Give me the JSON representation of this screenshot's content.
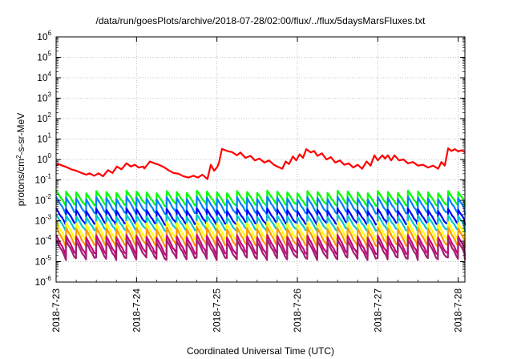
{
  "chart_data": {
    "type": "line",
    "title": "/data/run/goesPlots/archive/2018-07-28/02:00/flux/../flux/5daysMarsFluxes.txt",
    "xlabel": "Coordinated Universal Time (UTC)",
    "ylabel_parts": {
      "pre": "protons/cm",
      "sup": "2",
      "post": "-s-sr-MeV"
    },
    "x_axis": {
      "type": "date",
      "range": [
        "2018-07-23",
        "2018-07-28 02:00"
      ],
      "ticks": [
        "2018-7-23",
        "2018-7-24",
        "2018-7-25",
        "2018-7-26",
        "2018-7-27",
        "2018-7-28"
      ]
    },
    "y_axis": {
      "scale": "log",
      "range": [
        1e-06,
        1000000.0
      ],
      "tick_exponents": [
        -6,
        -5,
        -4,
        -3,
        -2,
        -1,
        0,
        1,
        2,
        3,
        4,
        5,
        6
      ]
    },
    "grid": true,
    "legend": "none",
    "series": [
      {
        "color": "#ff0000",
        "kind": "envelope",
        "points": [
          [
            "2018-07-23 00:00",
            0.5
          ],
          [
            "2018-07-23 00:40",
            0.6
          ],
          [
            "2018-07-23 01:50",
            0.5
          ],
          [
            "2018-07-23 03:10",
            0.42
          ],
          [
            "2018-07-23 04:40",
            0.32
          ],
          [
            "2018-07-23 06:00",
            0.28
          ],
          [
            "2018-07-23 07:30",
            0.22
          ],
          [
            "2018-07-23 09:00",
            0.18
          ],
          [
            "2018-07-23 10:00",
            0.21
          ],
          [
            "2018-07-23 11:20",
            0.16
          ],
          [
            "2018-07-23 12:40",
            0.21
          ],
          [
            "2018-07-23 14:00",
            0.15
          ],
          [
            "2018-07-23 15:30",
            0.3
          ],
          [
            "2018-07-23 16:50",
            0.22
          ],
          [
            "2018-07-23 18:10",
            0.45
          ],
          [
            "2018-07-23 19:30",
            0.33
          ],
          [
            "2018-07-23 21:00",
            0.65
          ],
          [
            "2018-07-23 22:20",
            0.45
          ],
          [
            "2018-07-23 23:30",
            0.55
          ],
          [
            "2018-07-24 00:40",
            0.4
          ],
          [
            "2018-07-24 02:00",
            0.45
          ],
          [
            "2018-07-24 02:20",
            0.36
          ],
          [
            "2018-07-24 04:00",
            0.8
          ],
          [
            "2018-07-24 05:20",
            0.65
          ],
          [
            "2018-07-24 06:40",
            0.55
          ],
          [
            "2018-07-24 08:10",
            0.42
          ],
          [
            "2018-07-24 09:30",
            0.3
          ],
          [
            "2018-07-24 11:00",
            0.22
          ],
          [
            "2018-07-24 12:30",
            0.2
          ],
          [
            "2018-07-24 14:00",
            0.15
          ],
          [
            "2018-07-24 15:30",
            0.13
          ],
          [
            "2018-07-24 17:00",
            0.16
          ],
          [
            "2018-07-24 18:20",
            0.13
          ],
          [
            "2018-07-24 19:40",
            0.18
          ],
          [
            "2018-07-24 21:10",
            0.11
          ],
          [
            "2018-07-24 22:10",
            0.55
          ],
          [
            "2018-07-24 23:10",
            0.28
          ],
          [
            "2018-07-25 00:10",
            0.45
          ],
          [
            "2018-07-25 00:40",
            0.75
          ],
          [
            "2018-07-25 01:30",
            3.3
          ],
          [
            "2018-07-25 03:00",
            2.6
          ],
          [
            "2018-07-25 04:30",
            2.3
          ],
          [
            "2018-07-25 06:00",
            1.6
          ],
          [
            "2018-07-25 07:00",
            2.2
          ],
          [
            "2018-07-25 08:30",
            1.2
          ],
          [
            "2018-07-25 10:00",
            1.5
          ],
          [
            "2018-07-25 11:20",
            0.9
          ],
          [
            "2018-07-25 12:40",
            1.1
          ],
          [
            "2018-07-25 14:10",
            0.7
          ],
          [
            "2018-07-25 15:30",
            0.9
          ],
          [
            "2018-07-25 17:00",
            0.55
          ],
          [
            "2018-07-25 18:00",
            0.45
          ],
          [
            "2018-07-25 19:30",
            0.35
          ],
          [
            "2018-07-25 20:30",
            0.8
          ],
          [
            "2018-07-25 21:30",
            0.6
          ],
          [
            "2018-07-25 22:40",
            1.4
          ],
          [
            "2018-07-25 23:40",
            0.9
          ],
          [
            "2018-07-26 00:40",
            1.8
          ],
          [
            "2018-07-26 01:40",
            1.2
          ],
          [
            "2018-07-26 02:40",
            3.2
          ],
          [
            "2018-07-26 04:00",
            2.2
          ],
          [
            "2018-07-26 05:00",
            2.6
          ],
          [
            "2018-07-26 06:00",
            1.5
          ],
          [
            "2018-07-26 07:20",
            2.0
          ],
          [
            "2018-07-26 08:40",
            1.0
          ],
          [
            "2018-07-26 10:00",
            1.3
          ],
          [
            "2018-07-26 11:20",
            0.7
          ],
          [
            "2018-07-26 12:40",
            0.9
          ],
          [
            "2018-07-26 14:00",
            0.55
          ],
          [
            "2018-07-26 15:20",
            0.65
          ],
          [
            "2018-07-26 16:40",
            0.4
          ],
          [
            "2018-07-26 18:00",
            0.55
          ],
          [
            "2018-07-26 19:20",
            0.35
          ],
          [
            "2018-07-26 20:40",
            0.8
          ],
          [
            "2018-07-26 21:50",
            0.5
          ],
          [
            "2018-07-26 23:00",
            1.6
          ],
          [
            "2018-07-27 00:00",
            0.9
          ],
          [
            "2018-07-27 01:20",
            1.6
          ],
          [
            "2018-07-27 02:10",
            1.1
          ],
          [
            "2018-07-27 03:00",
            1.6
          ],
          [
            "2018-07-27 04:00",
            0.9
          ],
          [
            "2018-07-27 05:00",
            1.6
          ],
          [
            "2018-07-27 06:20",
            0.9
          ],
          [
            "2018-07-27 07:40",
            1.0
          ],
          [
            "2018-07-27 09:00",
            0.65
          ],
          [
            "2018-07-27 10:30",
            0.75
          ],
          [
            "2018-07-27 12:00",
            0.5
          ],
          [
            "2018-07-27 13:30",
            0.55
          ],
          [
            "2018-07-27 15:00",
            0.4
          ],
          [
            "2018-07-27 16:30",
            0.5
          ],
          [
            "2018-07-27 18:00",
            0.35
          ],
          [
            "2018-07-27 19:00",
            0.75
          ],
          [
            "2018-07-27 20:00",
            0.5
          ],
          [
            "2018-07-27 21:00",
            3.5
          ],
          [
            "2018-07-27 22:00",
            2.6
          ],
          [
            "2018-07-27 23:00",
            3.2
          ],
          [
            "2018-07-28 00:00",
            2.5
          ],
          [
            "2018-07-28 01:00",
            2.8
          ],
          [
            "2018-07-28 02:00",
            2.3
          ]
        ]
      },
      {
        "color": "#00ff00",
        "kind": "sawtooth",
        "low": 0.005,
        "high": 0.03,
        "period_hours": 3
      },
      {
        "color": "#0080ff",
        "kind": "sawtooth",
        "low": 0.002,
        "high": 0.015,
        "period_hours": 3
      },
      {
        "color": "#0000ff",
        "kind": "sawtooth",
        "low": 0.0006,
        "high": 0.004,
        "period_hours": 3
      },
      {
        "color": "#00c8c8",
        "kind": "sawtooth",
        "low": 0.0003,
        "high": 0.002,
        "period_hours": 3
      },
      {
        "color": "#ffff00",
        "kind": "sawtooth",
        "low": 0.0001,
        "high": 0.0009,
        "period_hours": 3
      },
      {
        "color": "#ff9900",
        "kind": "sawtooth",
        "low": 5e-05,
        "high": 0.0005,
        "period_hours": 3
      },
      {
        "color": "#c80080",
        "kind": "sawtooth",
        "low": 2e-05,
        "high": 0.0002,
        "period_hours": 3
      },
      {
        "color": "#a02070",
        "kind": "sawtooth",
        "low": 1.2e-05,
        "high": 0.00012,
        "period_hours": 3
      }
    ]
  }
}
